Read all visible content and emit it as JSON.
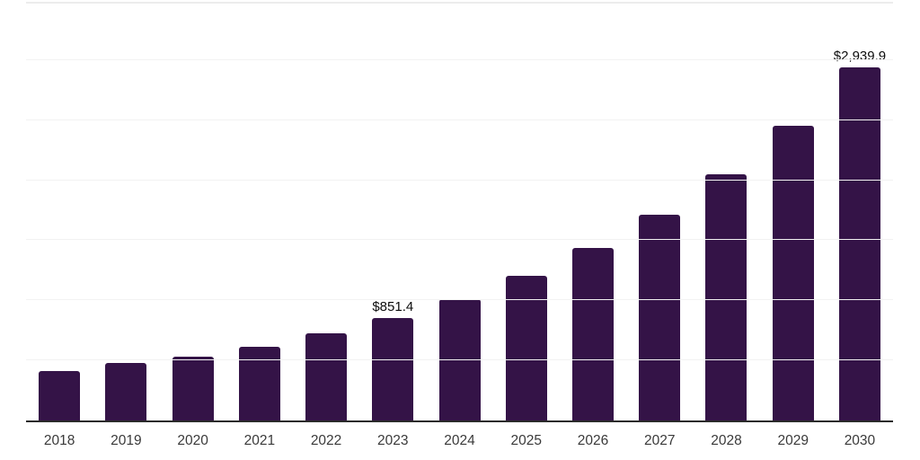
{
  "chart_data": {
    "type": "bar",
    "title": "",
    "xlabel": "",
    "ylabel": "",
    "categories": [
      "2018",
      "2019",
      "2020",
      "2021",
      "2022",
      "2023",
      "2024",
      "2025",
      "2026",
      "2027",
      "2028",
      "2029",
      "2030"
    ],
    "values": [
      410,
      478,
      530,
      612,
      724,
      851.4,
      1007,
      1201,
      1433,
      1709,
      2052,
      2455,
      2939.9
    ],
    "data_labels": [
      {
        "category": "2023",
        "text": "$851.4"
      },
      {
        "category": "2030",
        "text": "$2,939.9"
      }
    ],
    "ylim": [
      0,
      3500
    ],
    "gridline_interval": 500,
    "grid": "horizontal",
    "y_tick_labels_visible": false,
    "legend": "none",
    "colors": {
      "bar": "#341347",
      "axis_line": "#2b2b2b",
      "gridline": "#f2f2f2",
      "top_gridline": "#ececec",
      "x_label_text": "#3a3a3a",
      "value_label_text": "#0d0d0d",
      "background": "#ffffff"
    }
  }
}
